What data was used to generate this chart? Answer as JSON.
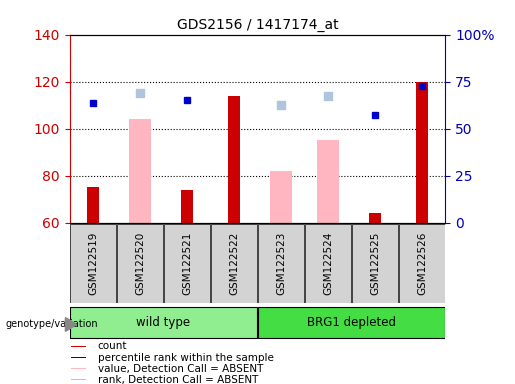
{
  "title": "GDS2156 / 1417174_at",
  "samples": [
    "GSM122519",
    "GSM122520",
    "GSM122521",
    "GSM122522",
    "GSM122523",
    "GSM122524",
    "GSM122525",
    "GSM122526"
  ],
  "count_values": [
    75,
    null,
    74,
    114,
    null,
    null,
    64,
    120
  ],
  "count_color": "#CC0000",
  "rank_values": [
    111,
    null,
    112,
    null,
    null,
    null,
    106,
    118
  ],
  "rank_color": "#0000CC",
  "absent_value_values": [
    null,
    104,
    null,
    null,
    82,
    95,
    null,
    null
  ],
  "absent_value_color": "#FFB6C1",
  "absent_rank_values": [
    null,
    115,
    null,
    null,
    110,
    114,
    null,
    null
  ],
  "absent_rank_color": "#B0C4DE",
  "ylim_left": [
    60,
    140
  ],
  "ylim_right": [
    0,
    100
  ],
  "yticks_left": [
    60,
    80,
    100,
    120,
    140
  ],
  "yticks_right": [
    0,
    25,
    50,
    75,
    100
  ],
  "yticklabels_right": [
    "0",
    "25",
    "50",
    "75",
    "100%"
  ],
  "left_axis_color": "#CC0000",
  "right_axis_color": "#0000BB",
  "grid_color": "#000000",
  "genotype_label": "genotype/variation",
  "legend_items": [
    {
      "label": "count",
      "color": "#CC0000"
    },
    {
      "label": "percentile rank within the sample",
      "color": "#0000CC"
    },
    {
      "label": "value, Detection Call = ABSENT",
      "color": "#FFB6C1"
    },
    {
      "label": "rank, Detection Call = ABSENT",
      "color": "#B0C4DE"
    }
  ],
  "background_color": "#FFFFFF",
  "plot_bg_color": "#FFFFFF",
  "sample_cell_color": "#D3D3D3",
  "wt_color": "#90EE90",
  "brg_color": "#44DD44"
}
